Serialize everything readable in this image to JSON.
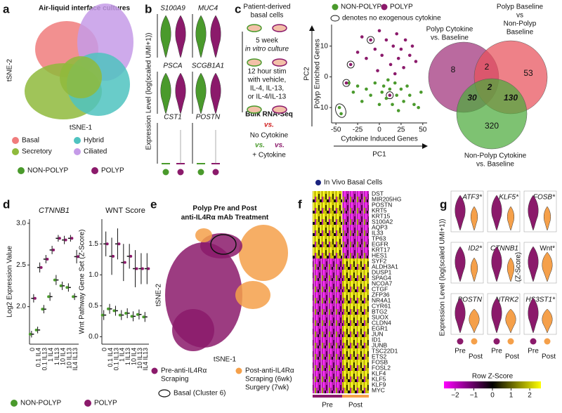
{
  "figure": {
    "groups": [
      {
        "name": "NON-POLYP",
        "color": "#4a9a2c"
      },
      {
        "name": "POLYP",
        "color": "#8b1a6b"
      }
    ],
    "a": {
      "letter": "a",
      "title": "Air-liquid interface cultures",
      "xlabel": "tSNE-1",
      "ylabel": "tSNE-2",
      "legend": [
        {
          "name": "Basal",
          "color": "#f07c7c"
        },
        {
          "name": "Hybrid",
          "color": "#4fc3c0"
        },
        {
          "name": "Secretory",
          "color": "#8fba3c"
        },
        {
          "name": "Ciliated",
          "color": "#c59be8"
        }
      ]
    },
    "b": {
      "letter": "b",
      "ylabel": "Expression Level (log(scaled UMI+1))",
      "genes": [
        "S100A9",
        "MUC4",
        "PSCA",
        "SCGB1A1",
        "CST1",
        "POSTN"
      ]
    },
    "c": {
      "letter": "c",
      "protocol": [
        "Patient-derived",
        "basal cells",
        "5 week",
        "in vitro culture",
        "12 hour stim",
        "with vehicle,",
        "IL-4, IL-13,",
        "or IL-4/IL-13",
        "Bulk RNA-Seq",
        "vs.",
        "No Cytokine",
        "vs.",
        "vs.",
        "+ Cytokine"
      ],
      "pca": {
        "type": "scatter",
        "legend_note": "denotes no exogenous cytokine",
        "xlabel": "PC1",
        "ylabel": "PC2",
        "x_direction": "Cytokine Induced Genes",
        "y_direction": "Polyp Enriched Genes",
        "xlim": [
          -55,
          55
        ],
        "ylim": [
          -15,
          17
        ],
        "xticks": [
          -50,
          -25,
          0,
          25,
          50
        ],
        "yticks": [
          -10,
          0,
          10
        ],
        "series": [
          {
            "name": "NON-POLYP",
            "color": "#4a9a2c",
            "x": [
              -46,
              -44,
              -30,
              -25,
              -20,
              -15,
              -10,
              -5,
              0,
              3,
              5,
              8,
              12,
              15,
              18,
              20,
              22,
              25,
              28,
              32,
              35,
              40,
              45,
              48,
              -35,
              10
            ],
            "values": [
              -10,
              -12,
              -5,
              -3,
              -8,
              -4,
              -6,
              -2,
              -9,
              -5,
              -3,
              -7,
              -4,
              -9,
              -2,
              -6,
              -11,
              -4,
              -8,
              -3,
              -6,
              -9,
              -10,
              -5,
              -2,
              -1
            ]
          },
          {
            "name": "POLYP",
            "color": "#8b1a6b",
            "x": [
              -10,
              -33,
              -38,
              12,
              -25,
              -20,
              -15,
              -5,
              0,
              3,
              8,
              13,
              16,
              20,
              22,
              25,
              28,
              30,
              35,
              38,
              42,
              -2,
              18
            ],
            "values": [
              12,
              4,
              -2,
              -6,
              8,
              13,
              6,
              9,
              15,
              7,
              12,
              4,
              10,
              14,
              6,
              9,
              3,
              12,
              7,
              10,
              5,
              2,
              1
            ]
          }
        ]
      },
      "venn": {
        "sets": [
          {
            "label": [
              "Polyp Cytokine",
              "vs. Baseline"
            ],
            "color": "#a0307a"
          },
          {
            "label": [
              "Polyp Baseline",
              "vs",
              "Non-Polyp",
              "Baseline"
            ],
            "color": "#e8505a"
          },
          {
            "label": [
              "Non-Polyp Cytokine",
              "vs. Baseline"
            ],
            "color": "#4caa3c"
          }
        ],
        "counts": [
          8,
          2,
          53,
          30,
          2,
          130,
          320
        ]
      }
    },
    "d": {
      "letter": "d",
      "categories": [
        "0",
        "0.1 IL4",
        "0.1 IL13",
        "1 IL4",
        "1 IL13",
        "10 IL4",
        "10 IL13",
        "IL4 IL13"
      ],
      "charts": [
        {
          "title": "CTNNB1",
          "ylabel": "Log2 Expression Value",
          "ylim": [
            1.55,
            3.05
          ],
          "yticks": [
            {
              "value": 2,
              "label": "2.0"
            },
            {
              "value": 2.5,
              "label": "2.5"
            },
            {
              "value": 3,
              "label": "3.0"
            }
          ],
          "series": [
            {
              "values": [
                1.67,
                1.72,
                1.97,
                2.12,
                2.32,
                2.25,
                2.23,
                2.12
              ],
              "errors": [
                0.04,
                0.04,
                0.05,
                0.05,
                0.06,
                0.05,
                0.05,
                0.04
              ]
            },
            {
              "values": [
                2.1,
                2.47,
                2.57,
                2.68,
                2.82,
                2.8,
                2.82,
                2.6
              ],
              "errors": [
                0.05,
                0.06,
                0.05,
                0.05,
                0.04,
                0.05,
                0.04,
                0.08
              ]
            }
          ]
        },
        {
          "title": "WNT Score",
          "ylabel": "Wnt Pathway Gene Set (Z-Score)",
          "ylim": [
            -0.12,
            1.9
          ],
          "yticks": [
            {
              "value": 0,
              "label": "0.0"
            },
            {
              "value": 0.5,
              "label": "0.5"
            },
            {
              "value": 1,
              "label": "1.0"
            },
            {
              "value": 1.5,
              "label": "1.5"
            }
          ],
          "series": [
            {
              "values": [
                0.35,
                0.45,
                0.42,
                0.35,
                0.38,
                0.33,
                0.36,
                0.32
              ],
              "errors": [
                0.08,
                0.08,
                0.08,
                0.08,
                0.08,
                0.08,
                0.08,
                0.08
              ]
            },
            {
              "values": [
                1.5,
                1.3,
                1.5,
                1.2,
                1.3,
                1.1,
                1.1,
                1.1
              ],
              "errors": [
                0.2,
                0.3,
                0.25,
                0.3,
                0.2,
                0.3,
                0.25,
                0.25
              ]
            }
          ]
        }
      ]
    },
    "e": {
      "letter": "e",
      "title": [
        "Polyp Pre and Post",
        "anti-IL4Rα mAb Treatment"
      ],
      "xlabel": "tSNE-1",
      "ylabel": "tSNE-2",
      "legend": [
        {
          "label": [
            "Pre-anti-IL4Rα",
            "Scraping"
          ],
          "color": "#8b1a6b"
        },
        {
          "label": [
            "Post-anti-IL4Rα",
            "Scraping (6wk)",
            "Surgery (7wk)"
          ],
          "color": "#f5a04a"
        },
        {
          "label": [
            "Basal (Cluster 6)"
          ]
        }
      ]
    },
    "f": {
      "letter": "f",
      "legend": "In Vivo Basal Cells",
      "genes": [
        "DST",
        "MIR205HG",
        "POSTN",
        "KRT5",
        "KRT15",
        "S100A2",
        "AQP3",
        "IL33",
        "TP63",
        "EGFR",
        "KRT17",
        "HES1",
        "SYF2",
        "ALDH3A1",
        "DUSP1",
        "SPAG4",
        "NCOA7",
        "CTGF",
        "ZFP36",
        "NR4A1",
        "CYR61",
        "BTG2",
        "SUOX",
        "CLDN4",
        "EGR1",
        "JUN",
        "ID1",
        "JUNB",
        "TSC22D1",
        "ETS2",
        "FOSB",
        "FOSL2",
        "KLF4",
        "KLF5",
        "KLF9",
        "MYC"
      ],
      "groups": [
        {
          "name": "Pre",
          "color": "#8b1a6b"
        },
        {
          "name": "Post",
          "color": "#f5a04a"
        }
      ],
      "colorbar": {
        "title": "Row Z-Score",
        "lim": [
          -2.6,
          2.6
        ],
        "colors": [
          "#ff00ff",
          "#000000",
          "#ffff00"
        ],
        "ticks": [
          {
            "value": -2,
            "label": "−2"
          },
          {
            "value": -1,
            "label": "−1"
          },
          0,
          1,
          2
        ]
      }
    },
    "g": {
      "letter": "g",
      "ylabel": "Expression Level (log(scaled UMI+1))",
      "wnt_ylabel": "(Z-Score)",
      "genes": [
        "ATF3*",
        "KLF5*",
        "FOSB*",
        "ID2*",
        "CTNNB1",
        "Wnt*",
        "POSTN",
        "NTRK2",
        "HS3ST1*"
      ]
    }
  }
}
